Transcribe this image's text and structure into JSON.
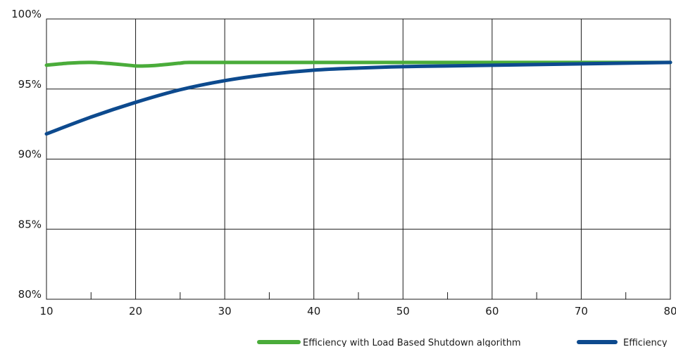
{
  "chart_data": {
    "type": "line",
    "title": "",
    "xlabel": "",
    "ylabel": "",
    "xlim": [
      10,
      80
    ],
    "ylim": [
      80,
      100
    ],
    "x_ticks": [
      10,
      20,
      30,
      40,
      50,
      60,
      70,
      80
    ],
    "x_tick_labels": [
      "10",
      "20",
      "30",
      "40",
      "50",
      "60",
      "70",
      "80"
    ],
    "x_minor_ticks": [
      15,
      25,
      35,
      45,
      55,
      65,
      75
    ],
    "y_ticks": [
      80,
      85,
      90,
      95,
      100
    ],
    "y_tick_labels": [
      "80%",
      "85%",
      "90%",
      "95%",
      "100%"
    ],
    "grid": true,
    "legend_position": "bottom",
    "series": [
      {
        "name": "Efficiency with Load Based Shutdown algorithm",
        "color": "#4aac3a",
        "x": [
          10,
          12.5,
          15,
          17.5,
          20,
          21,
          22.5,
          25,
          26,
          30,
          40,
          50,
          60,
          70,
          80
        ],
        "y": [
          96.7,
          96.85,
          96.9,
          96.8,
          96.65,
          96.65,
          96.7,
          96.85,
          96.9,
          96.9,
          96.9,
          96.9,
          96.9,
          96.9,
          96.9
        ]
      },
      {
        "name": "Efficiency",
        "color": "#0d4a8e",
        "x": [
          10,
          15,
          20,
          25,
          30,
          35,
          40,
          45,
          50,
          55,
          60,
          65,
          70,
          75,
          80
        ],
        "y": [
          91.8,
          93.0,
          94.05,
          94.95,
          95.6,
          96.05,
          96.35,
          96.5,
          96.6,
          96.65,
          96.7,
          96.75,
          96.8,
          96.85,
          96.9
        ]
      }
    ]
  }
}
